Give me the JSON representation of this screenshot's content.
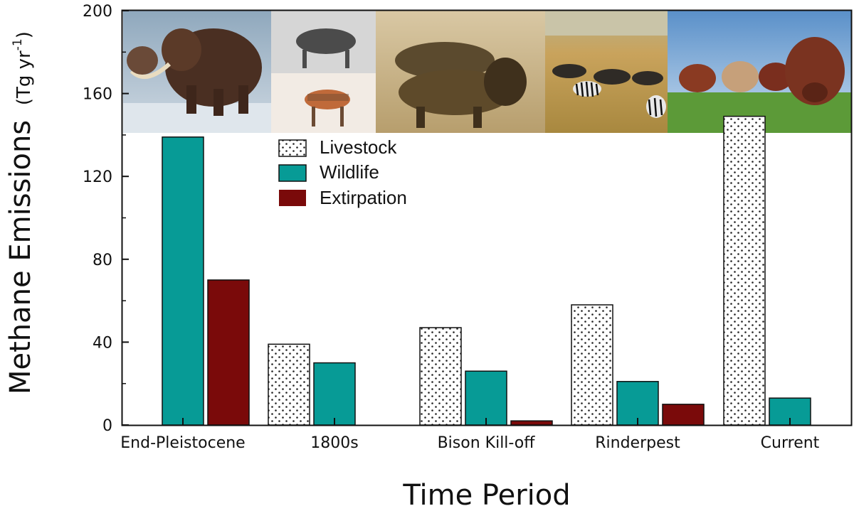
{
  "chart_data": {
    "type": "bar",
    "title": "",
    "xlabel": "Time Period",
    "ylabel_main": "Methane Emissions",
    "ylabel_unit_prefix": "(Tg yr",
    "ylabel_unit_exp": "-1",
    "ylabel_unit_suffix": ")",
    "ylim": [
      0,
      200
    ],
    "yticks": [
      0,
      40,
      80,
      120,
      160,
      200
    ],
    "categories": [
      "End-Pleistocene",
      "1800s",
      "Bison Kill-off",
      "Rinderpest",
      "Current"
    ],
    "series": [
      {
        "name": "Livestock",
        "values": [
          null,
          39,
          47,
          58,
          149
        ],
        "color": "#ffffff",
        "pattern": "dots"
      },
      {
        "name": "Wildlife",
        "values": [
          139,
          30,
          26,
          21,
          13
        ],
        "color": "#079b96",
        "pattern": "solid"
      },
      {
        "name": "Extirpation",
        "values": [
          70,
          null,
          2,
          10,
          null
        ],
        "color": "#7a0a0a",
        "pattern": "solid"
      }
    ],
    "legend_position": "top-left",
    "grid": false,
    "photo_strip": [
      {
        "category": "End-Pleistocene",
        "icon": "woolly-mammoth-photo"
      },
      {
        "category": "1800s",
        "icon": "aurochs-and-quagga-photo"
      },
      {
        "category": "Bison Kill-off",
        "icon": "bison-photo"
      },
      {
        "category": "Rinderpest",
        "icon": "wildebeest-zebra-herd-photo"
      },
      {
        "category": "Current",
        "icon": "cattle-photo"
      }
    ]
  }
}
